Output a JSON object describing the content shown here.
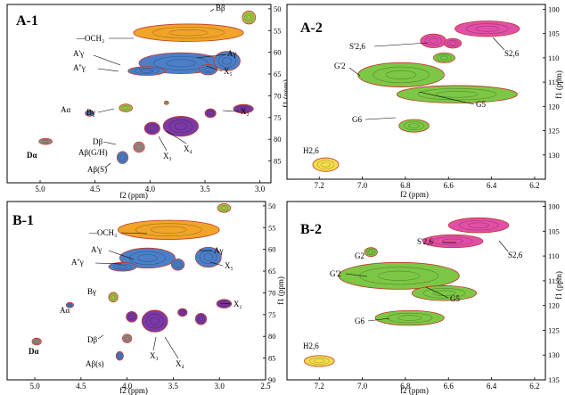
{
  "chart_data": [
    {
      "type": "heatmap",
      "panel_label": "A-1",
      "xlabel": "f2 (ppm)",
      "ylabel": "f1 (ppm)",
      "xlim": [
        5.3,
        2.9
      ],
      "ylim": [
        49,
        90
      ],
      "x_ticks": [
        5.0,
        4.5,
        4.0,
        3.5,
        3.0
      ],
      "y_ticks": [
        50,
        55,
        60,
        65,
        70,
        75,
        80,
        85
      ],
      "grid": false,
      "blobs": [
        {
          "x": 3.65,
          "y": 55.5,
          "rx": 0.5,
          "ry": 2.0,
          "color": "#f0a428"
        },
        {
          "x": 3.1,
          "y": 52.0,
          "rx": 0.06,
          "ry": 1.5,
          "color": "#a5c64a"
        },
        {
          "x": 3.72,
          "y": 62.5,
          "rx": 0.38,
          "ry": 2.4,
          "color": "#4b7fc8"
        },
        {
          "x": 4.03,
          "y": 64.3,
          "rx": 0.17,
          "ry": 1.0,
          "color": "#4b7fc8"
        },
        {
          "x": 3.3,
          "y": 62.0,
          "rx": 0.12,
          "ry": 2.2,
          "color": "#4b7fc8"
        },
        {
          "x": 3.47,
          "y": 64.0,
          "rx": 0.08,
          "ry": 1.2,
          "color": "#4b7fc8"
        },
        {
          "x": 4.22,
          "y": 72.8,
          "rx": 0.06,
          "ry": 0.9,
          "color": "#a5c64a"
        },
        {
          "x": 4.55,
          "y": 74.0,
          "rx": 0.04,
          "ry": 0.7,
          "color": "#4b7fc8"
        },
        {
          "x": 3.72,
          "y": 77.0,
          "rx": 0.16,
          "ry": 2.3,
          "color": "#7b3aa6"
        },
        {
          "x": 3.98,
          "y": 77.5,
          "rx": 0.07,
          "ry": 1.4,
          "color": "#7b3aa6"
        },
        {
          "x": 3.45,
          "y": 74.0,
          "rx": 0.05,
          "ry": 1.0,
          "color": "#7b3aa6"
        },
        {
          "x": 3.15,
          "y": 73.0,
          "rx": 0.09,
          "ry": 1.0,
          "color": "#7b3aa6"
        },
        {
          "x": 4.95,
          "y": 80.5,
          "rx": 0.06,
          "ry": 0.7,
          "color": "#a28b83"
        },
        {
          "x": 4.1,
          "y": 81.8,
          "rx": 0.05,
          "ry": 1.2,
          "color": "#a28b83"
        },
        {
          "x": 4.25,
          "y": 84.2,
          "rx": 0.05,
          "ry": 1.4,
          "color": "#4b7fc8"
        },
        {
          "x": 3.85,
          "y": 71.6,
          "rx": 0.02,
          "ry": 0.4,
          "color": "#a5c64a"
        }
      ],
      "annotations": [
        "Bβ",
        "—OCH₃",
        "A'γ",
        "Aγ",
        "A''γ",
        "X₅",
        "Aα",
        "Bγ",
        "X₂",
        "Dα",
        "Dβ",
        "Aβ(G/H)",
        "X₃",
        "X₄",
        "Aβ(S)"
      ]
    },
    {
      "type": "heatmap",
      "panel_label": "A-2",
      "xlabel": "f2 (ppm)",
      "ylabel": "f1 (ppm)",
      "xlim": [
        7.35,
        6.15
      ],
      "ylim": [
        99,
        135
      ],
      "x_ticks": [
        7.2,
        7.0,
        6.8,
        6.6,
        6.4,
        6.2
      ],
      "y_ticks": [
        100,
        105,
        110,
        115,
        120,
        125,
        130
      ],
      "grid": false,
      "blobs": [
        {
          "x": 6.42,
          "y": 104.0,
          "rx": 0.15,
          "ry": 1.6,
          "color": "#e24fa7"
        },
        {
          "x": 6.67,
          "y": 106.5,
          "rx": 0.06,
          "ry": 1.4,
          "color": "#e24fa7"
        },
        {
          "x": 6.58,
          "y": 107.0,
          "rx": 0.04,
          "ry": 1.0,
          "color": "#e24fa7"
        },
        {
          "x": 6.82,
          "y": 113.5,
          "rx": 0.2,
          "ry": 2.5,
          "color": "#7cc745"
        },
        {
          "x": 6.56,
          "y": 117.5,
          "rx": 0.28,
          "ry": 1.8,
          "color": "#7cc745"
        },
        {
          "x": 6.76,
          "y": 124.0,
          "rx": 0.07,
          "ry": 1.3,
          "color": "#7cc745"
        },
        {
          "x": 6.62,
          "y": 110.0,
          "rx": 0.05,
          "ry": 1.0,
          "color": "#7cc745"
        },
        {
          "x": 7.17,
          "y": 132.0,
          "rx": 0.06,
          "ry": 1.4,
          "color": "#f6de4a"
        }
      ],
      "annotations": [
        "S'2,6",
        "S2,6",
        "G'2",
        "G5",
        "G6",
        "H2,6"
      ]
    },
    {
      "type": "heatmap",
      "panel_label": "B-1",
      "xlabel": "f2 (ppm)",
      "ylabel": "f1 (ppm)",
      "xlim": [
        5.3,
        2.5
      ],
      "ylim": [
        49,
        90
      ],
      "x_ticks": [
        5.0,
        4.5,
        4.0,
        3.5,
        3.0,
        2.5
      ],
      "y_ticks": [
        50,
        55,
        60,
        65,
        70,
        75,
        80,
        85,
        90
      ],
      "grid": false,
      "blobs": [
        {
          "x": 3.55,
          "y": 55.5,
          "rx": 0.55,
          "ry": 2.2,
          "color": "#f0a428"
        },
        {
          "x": 2.95,
          "y": 50.5,
          "rx": 0.07,
          "ry": 1.0,
          "color": "#a5c64a"
        },
        {
          "x": 3.78,
          "y": 62.0,
          "rx": 0.3,
          "ry": 2.3,
          "color": "#4b7fc8"
        },
        {
          "x": 4.05,
          "y": 64.0,
          "rx": 0.15,
          "ry": 1.0,
          "color": "#4b7fc8"
        },
        {
          "x": 3.12,
          "y": 61.8,
          "rx": 0.14,
          "ry": 2.3,
          "color": "#4b7fc8"
        },
        {
          "x": 3.45,
          "y": 63.5,
          "rx": 0.07,
          "ry": 1.3,
          "color": "#4b7fc8"
        },
        {
          "x": 4.15,
          "y": 71.0,
          "rx": 0.05,
          "ry": 1.1,
          "color": "#a5c64a"
        },
        {
          "x": 4.62,
          "y": 72.8,
          "rx": 0.04,
          "ry": 0.6,
          "color": "#4b7fc8"
        },
        {
          "x": 3.7,
          "y": 76.5,
          "rx": 0.14,
          "ry": 2.5,
          "color": "#7b3aa6"
        },
        {
          "x": 3.95,
          "y": 75.5,
          "rx": 0.06,
          "ry": 1.2,
          "color": "#7b3aa6"
        },
        {
          "x": 3.4,
          "y": 74.5,
          "rx": 0.05,
          "ry": 0.9,
          "color": "#7b3aa6"
        },
        {
          "x": 3.2,
          "y": 76.0,
          "rx": 0.06,
          "ry": 1.3,
          "color": "#7b3aa6"
        },
        {
          "x": 2.95,
          "y": 72.5,
          "rx": 0.08,
          "ry": 1.0,
          "color": "#7b3aa6"
        },
        {
          "x": 4.98,
          "y": 81.2,
          "rx": 0.05,
          "ry": 0.8,
          "color": "#a28b83"
        },
        {
          "x": 4.0,
          "y": 80.5,
          "rx": 0.05,
          "ry": 1.0,
          "color": "#a28b83"
        },
        {
          "x": 4.08,
          "y": 84.5,
          "rx": 0.04,
          "ry": 1.0,
          "color": "#4b7fc8"
        }
      ],
      "annotations": [
        "—OCH₃",
        "A'γ",
        "Aγ",
        "A''γ",
        "X₅",
        "Bγ",
        "Aα",
        "X₂",
        "Dα",
        "Dβ",
        "X₃",
        "X₄",
        "Aβ(s)"
      ]
    },
    {
      "type": "heatmap",
      "panel_label": "B-2",
      "xlabel": "f2 (ppm)",
      "ylabel": "f1 (ppm)",
      "xlim": [
        7.35,
        6.15
      ],
      "ylim": [
        99,
        135
      ],
      "x_ticks": [
        7.2,
        7.0,
        6.8,
        6.6,
        6.4,
        6.2
      ],
      "y_ticks": [
        100,
        105,
        110,
        115,
        120,
        125,
        130,
        135
      ],
      "grid": false,
      "blobs": [
        {
          "x": 6.46,
          "y": 103.8,
          "rx": 0.14,
          "ry": 1.5,
          "color": "#e24fa7"
        },
        {
          "x": 6.58,
          "y": 107.0,
          "rx": 0.14,
          "ry": 1.3,
          "color": "#e24fa7"
        },
        {
          "x": 6.83,
          "y": 114.0,
          "rx": 0.28,
          "ry": 2.7,
          "color": "#7cc745"
        },
        {
          "x": 6.62,
          "y": 117.5,
          "rx": 0.15,
          "ry": 1.5,
          "color": "#7cc745"
        },
        {
          "x": 6.78,
          "y": 122.5,
          "rx": 0.16,
          "ry": 1.5,
          "color": "#7cc745"
        },
        {
          "x": 6.96,
          "y": 109.2,
          "rx": 0.03,
          "ry": 0.9,
          "color": "#7cc745"
        },
        {
          "x": 7.2,
          "y": 131.2,
          "rx": 0.07,
          "ry": 1.1,
          "color": "#f6de4a"
        }
      ],
      "annotations": [
        "S'2,6",
        "S2,6",
        "G2",
        "G'2",
        "G5",
        "G6",
        "H2,6"
      ]
    }
  ]
}
